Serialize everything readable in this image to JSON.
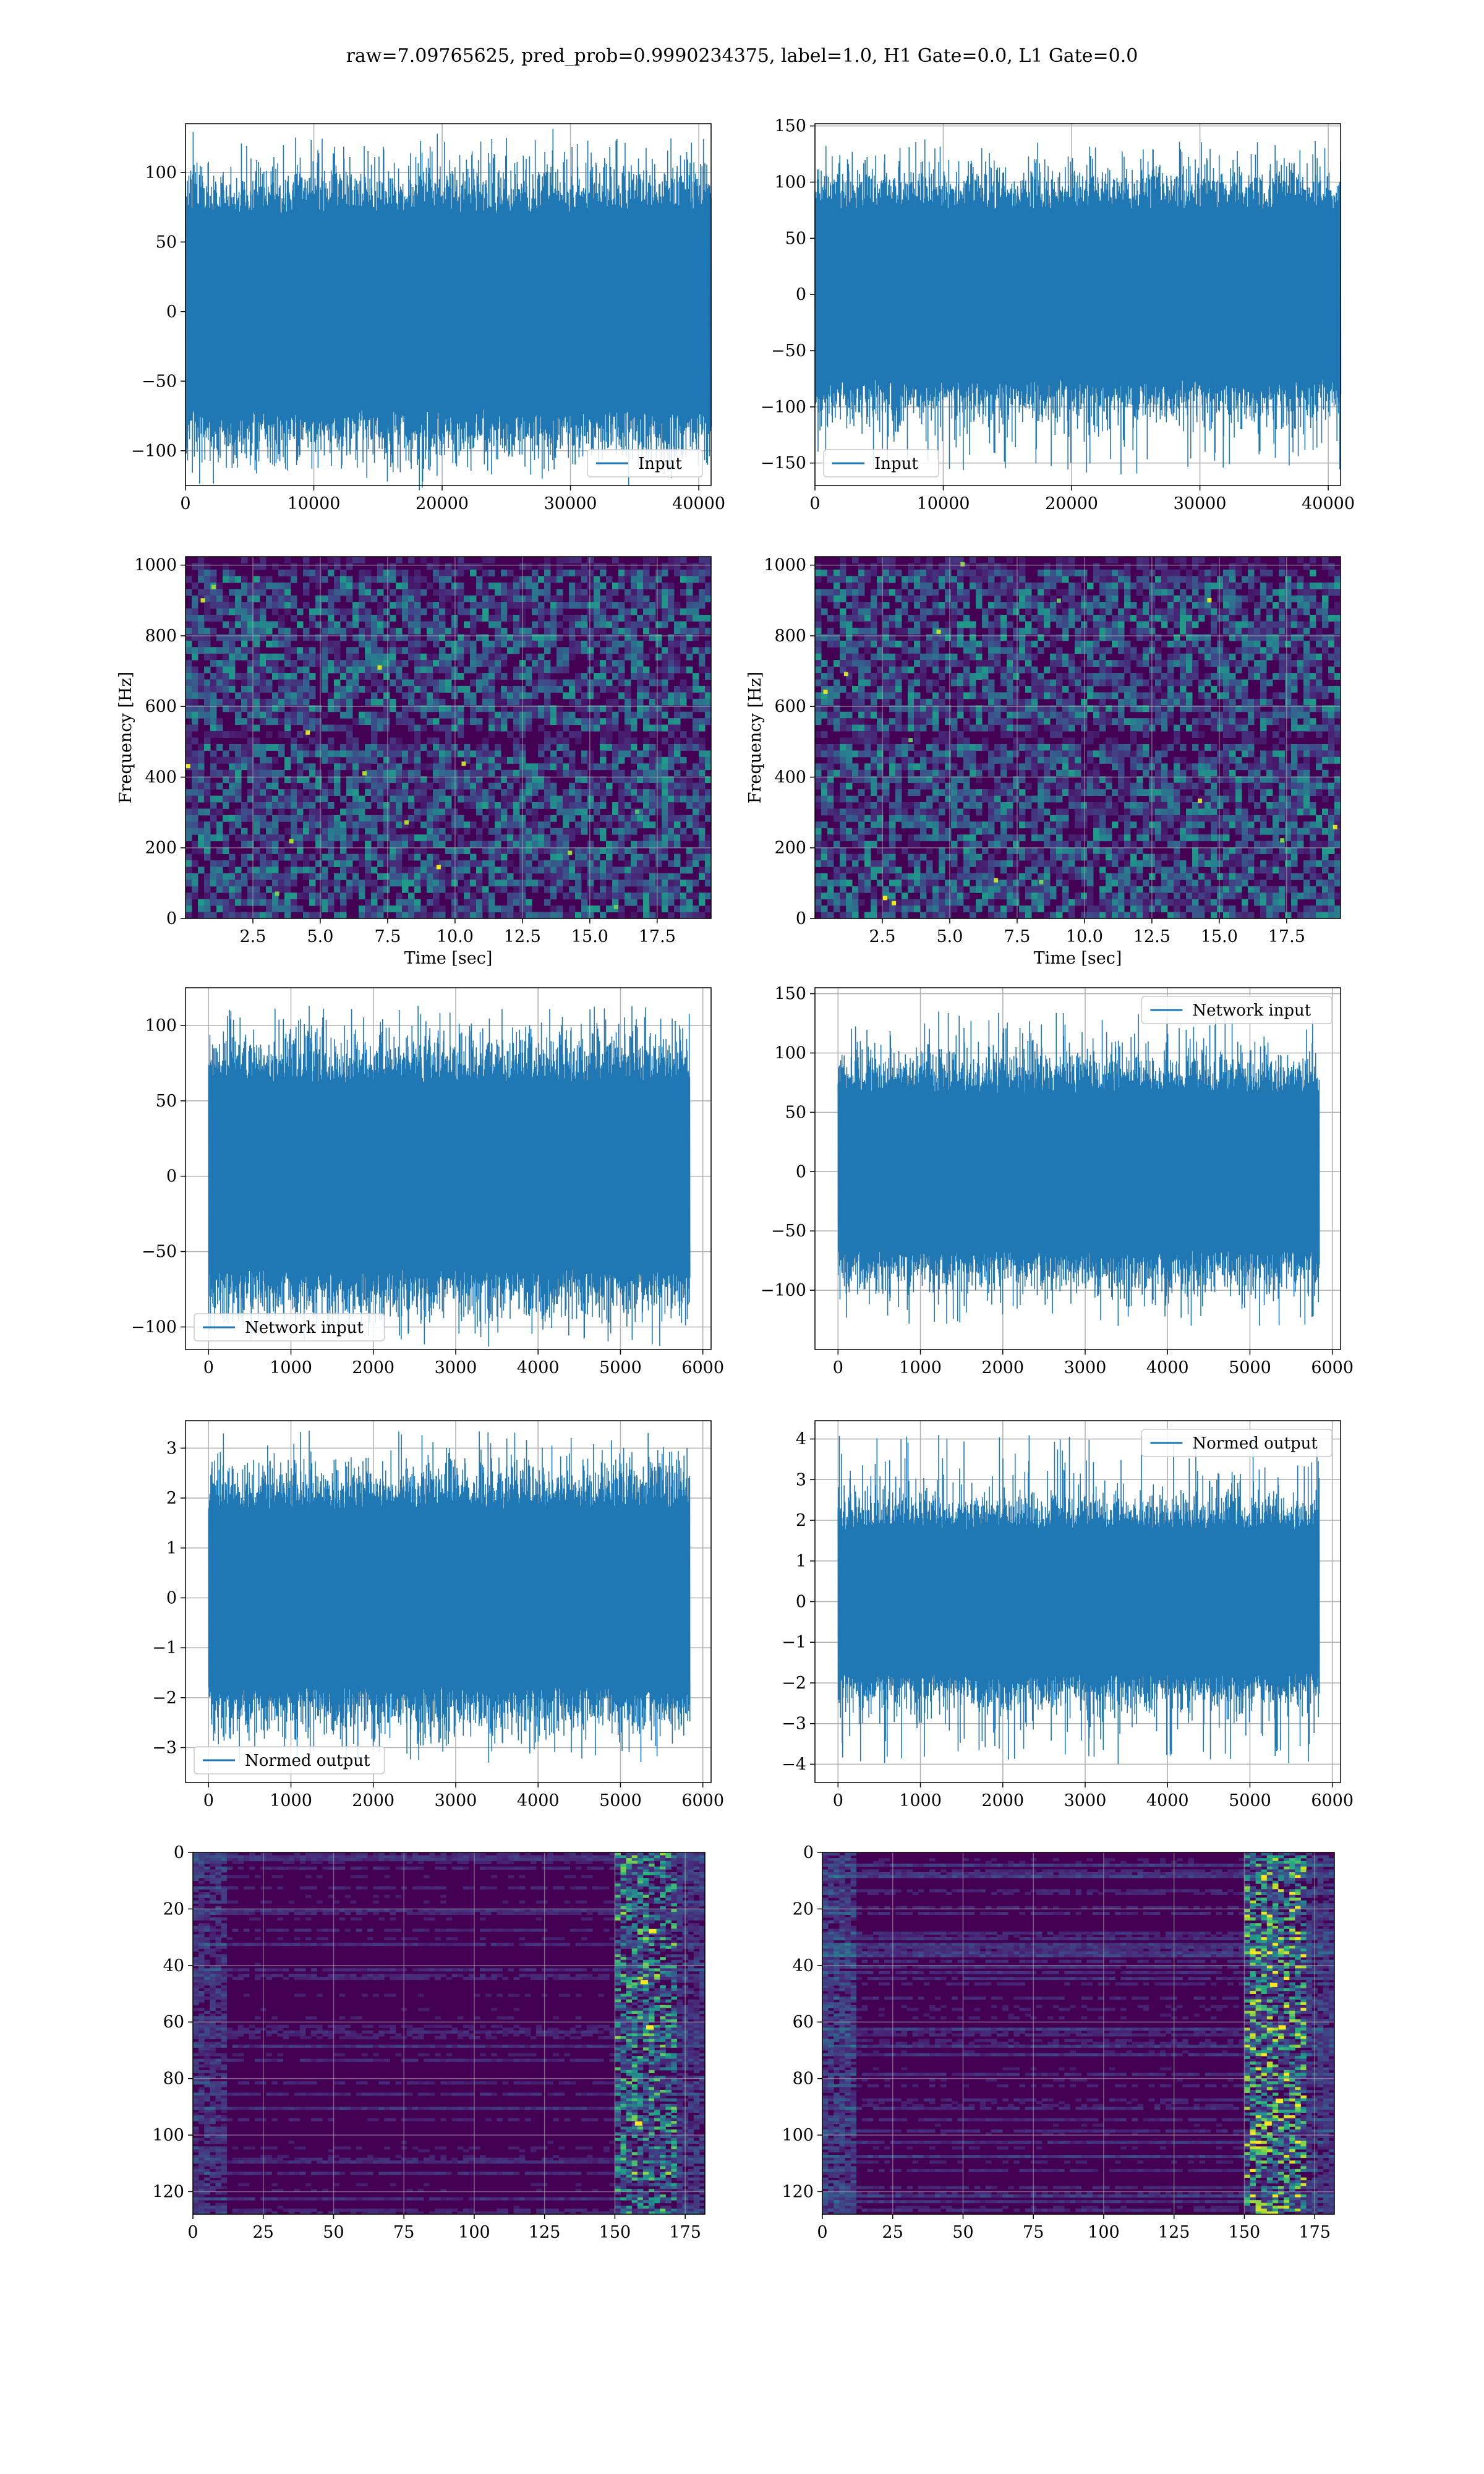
{
  "figure": {
    "title": "raw=7.09765625, pred_prob=0.9990234375, label=1.0, H1 Gate=0.0, L1 Gate=0.0"
  },
  "colors": {
    "line": "#1f77b4",
    "grid": "#b0b0b0",
    "viridis_dark": "#440154",
    "viridis_blue": "#3b528b",
    "viridis_teal": "#21918c",
    "viridis_green": "#5ec962",
    "viridis_yellow": "#fde725"
  },
  "chart_data": [
    {
      "id": "input-h1",
      "type": "line",
      "series": [
        {
          "name": "Input",
          "n_points": 40960,
          "amplitude": 32,
          "peak_min": -117,
          "peak_max": 125
        }
      ],
      "xlim": [
        0,
        40960
      ],
      "ylim": [
        -125,
        135
      ],
      "x_ticks": [
        0,
        10000,
        20000,
        30000,
        40000
      ],
      "x_tick_labels": [
        "0",
        "10000",
        "20000",
        "30000",
        "40000"
      ],
      "y_ticks": [
        -100,
        -50,
        0,
        50,
        100
      ],
      "y_tick_labels": [
        "−100",
        "−50",
        "0",
        "50",
        "100"
      ],
      "legend": "lower right",
      "grid": true,
      "xlabel": "",
      "ylabel": ""
    },
    {
      "id": "input-l1",
      "type": "line",
      "series": [
        {
          "name": "Input",
          "n_points": 40960,
          "amplitude": 34,
          "peak_min": -160,
          "peak_max": 138
        }
      ],
      "xlim": [
        0,
        40960
      ],
      "ylim": [
        -170,
        152
      ],
      "x_ticks": [
        0,
        10000,
        20000,
        30000,
        40000
      ],
      "x_tick_labels": [
        "0",
        "10000",
        "20000",
        "30000",
        "40000"
      ],
      "y_ticks": [
        -150,
        -100,
        -50,
        0,
        50,
        100,
        150
      ],
      "y_tick_labels": [
        "−150",
        "−100",
        "−50",
        "0",
        "50",
        "100",
        "150"
      ],
      "legend": "lower left",
      "grid": true,
      "xlabel": "",
      "ylabel": ""
    },
    {
      "id": "spectrogram-h1",
      "type": "heatmap",
      "xlim": [
        0,
        19.5
      ],
      "ylim": [
        0,
        1024
      ],
      "x_ticks": [
        2.5,
        5.0,
        7.5,
        10.0,
        12.5,
        15.0,
        17.5
      ],
      "x_tick_labels": [
        "2.5",
        "5.0",
        "7.5",
        "10.0",
        "12.5",
        "15.0",
        "17.5"
      ],
      "y_ticks": [
        0,
        200,
        400,
        600,
        800,
        1000
      ],
      "y_tick_labels": [
        "0",
        "200",
        "400",
        "600",
        "800",
        "1000"
      ],
      "xlabel": "Time [sec]",
      "ylabel": "Frequency [Hz]",
      "colormap": "viridis",
      "grid": true
    },
    {
      "id": "spectrogram-l1",
      "type": "heatmap",
      "xlim": [
        0,
        19.5
      ],
      "ylim": [
        0,
        1024
      ],
      "x_ticks": [
        2.5,
        5.0,
        7.5,
        10.0,
        12.5,
        15.0,
        17.5
      ],
      "x_tick_labels": [
        "2.5",
        "5.0",
        "7.5",
        "10.0",
        "12.5",
        "15.0",
        "17.5"
      ],
      "y_ticks": [
        0,
        200,
        400,
        600,
        800,
        1000
      ],
      "y_tick_labels": [
        "0",
        "200",
        "400",
        "600",
        "800",
        "1000"
      ],
      "xlabel": "Time [sec]",
      "ylabel": "Frequency [Hz]",
      "colormap": "viridis",
      "grid": true
    },
    {
      "id": "network-input-h1",
      "type": "line",
      "series": [
        {
          "name": "Network input",
          "n_points": 5840,
          "amplitude": 28,
          "peak_min": -113,
          "peak_max": 113
        }
      ],
      "xlim": [
        -280,
        6100
      ],
      "ylim": [
        -115,
        125
      ],
      "x_ticks": [
        0,
        1000,
        2000,
        3000,
        4000,
        5000,
        6000
      ],
      "x_tick_labels": [
        "0",
        "1000",
        "2000",
        "3000",
        "4000",
        "5000",
        "6000"
      ],
      "y_ticks": [
        -100,
        -50,
        0,
        50,
        100
      ],
      "y_tick_labels": [
        "−100",
        "−50",
        "0",
        "50",
        "100"
      ],
      "legend": "lower left",
      "grid": true,
      "xlabel": "",
      "ylabel": ""
    },
    {
      "id": "network-input-l1",
      "type": "line",
      "series": [
        {
          "name": "Network input",
          "n_points": 5840,
          "amplitude": 30,
          "peak_min": -130,
          "peak_max": 135
        }
      ],
      "xlim": [
        -280,
        6100
      ],
      "ylim": [
        -150,
        155
      ],
      "x_ticks": [
        0,
        1000,
        2000,
        3000,
        4000,
        5000,
        6000
      ],
      "x_tick_labels": [
        "0",
        "1000",
        "2000",
        "3000",
        "4000",
        "5000",
        "6000"
      ],
      "y_ticks": [
        -100,
        -50,
        0,
        50,
        100,
        150
      ],
      "y_tick_labels": [
        "−100",
        "−50",
        "0",
        "50",
        "100",
        "150"
      ],
      "legend": "upper right",
      "grid": true,
      "xlabel": "",
      "ylabel": ""
    },
    {
      "id": "normed-output-h1",
      "type": "line",
      "series": [
        {
          "name": "Normed output",
          "n_points": 5840,
          "amplitude": 0.8,
          "peak_min": -3.3,
          "peak_max": 3.35
        }
      ],
      "xlim": [
        -280,
        6100
      ],
      "ylim": [
        -3.7,
        3.55
      ],
      "x_ticks": [
        0,
        1000,
        2000,
        3000,
        4000,
        5000,
        6000
      ],
      "x_tick_labels": [
        "0",
        "1000",
        "2000",
        "3000",
        "4000",
        "5000",
        "6000"
      ],
      "y_ticks": [
        -3,
        -2,
        -1,
        0,
        1,
        2,
        3
      ],
      "y_tick_labels": [
        "−3",
        "−2",
        "−1",
        "0",
        "1",
        "2",
        "3"
      ],
      "legend": "lower left",
      "grid": true,
      "xlabel": "",
      "ylabel": ""
    },
    {
      "id": "normed-output-l1",
      "type": "line",
      "series": [
        {
          "name": "Normed output",
          "n_points": 5840,
          "amplitude": 0.8,
          "peak_min": -4.0,
          "peak_max": 4.1
        }
      ],
      "xlim": [
        -280,
        6100
      ],
      "ylim": [
        -4.45,
        4.45
      ],
      "x_ticks": [
        0,
        1000,
        2000,
        3000,
        4000,
        5000,
        6000
      ],
      "x_tick_labels": [
        "0",
        "1000",
        "2000",
        "3000",
        "4000",
        "5000",
        "6000"
      ],
      "y_ticks": [
        -4,
        -3,
        -2,
        -1,
        0,
        1,
        2,
        3,
        4
      ],
      "y_tick_labels": [
        "−4",
        "−3",
        "−2",
        "−1",
        "0",
        "1",
        "2",
        "3",
        "4"
      ],
      "legend": "upper right",
      "grid": true,
      "xlabel": "",
      "ylabel": ""
    },
    {
      "id": "feature-map-h1",
      "type": "heatmap",
      "xlim": [
        0,
        182
      ],
      "ylim": [
        128,
        0
      ],
      "x_ticks": [
        0,
        25,
        50,
        75,
        100,
        125,
        150,
        175
      ],
      "x_tick_labels": [
        "0",
        "25",
        "50",
        "75",
        "100",
        "125",
        "150",
        "175"
      ],
      "y_ticks": [
        0,
        20,
        40,
        60,
        80,
        100,
        120
      ],
      "y_tick_labels": [
        "0",
        "20",
        "40",
        "60",
        "80",
        "100",
        "120"
      ],
      "colormap": "viridis",
      "grid": true,
      "xlabel": "",
      "ylabel": ""
    },
    {
      "id": "feature-map-l1",
      "type": "heatmap",
      "xlim": [
        0,
        182
      ],
      "ylim": [
        128,
        0
      ],
      "x_ticks": [
        0,
        25,
        50,
        75,
        100,
        125,
        150,
        175
      ],
      "x_tick_labels": [
        "0",
        "25",
        "50",
        "75",
        "100",
        "125",
        "150",
        "175"
      ],
      "y_ticks": [
        0,
        20,
        40,
        60,
        80,
        100,
        120
      ],
      "y_tick_labels": [
        "0",
        "20",
        "40",
        "60",
        "80",
        "100",
        "120"
      ],
      "colormap": "viridis",
      "grid": true,
      "xlabel": "",
      "ylabel": ""
    }
  ]
}
